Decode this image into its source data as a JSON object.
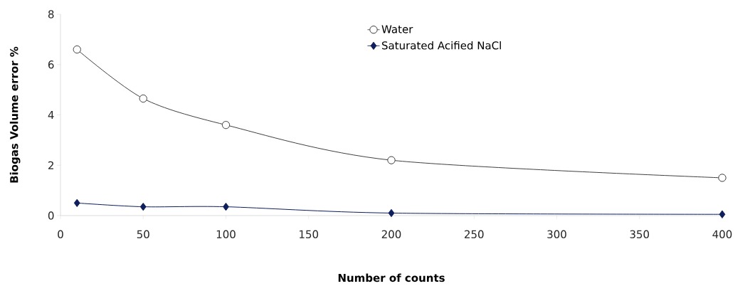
{
  "chart_data": {
    "type": "line",
    "xlabel": "Number of counts",
    "ylabel": "Biogas Volume error %",
    "x": [
      10,
      50,
      100,
      200,
      400
    ],
    "series": [
      {
        "name": "Water",
        "color": "#404040",
        "marker": "circle",
        "values": [
          6.6,
          4.65,
          3.6,
          2.2,
          1.5
        ]
      },
      {
        "name": "Saturated Acified NaCl",
        "color": "#0d1f5c",
        "marker": "diamond",
        "values": [
          0.5,
          0.35,
          0.35,
          0.1,
          0.05
        ]
      }
    ],
    "xlim": [
      0,
      400
    ],
    "ylim": [
      0,
      8
    ],
    "xticks": [
      0,
      50,
      100,
      150,
      200,
      250,
      300,
      350,
      400
    ],
    "yticks": [
      0,
      2,
      4,
      6,
      8
    ],
    "legend": "top",
    "grid": false
  }
}
